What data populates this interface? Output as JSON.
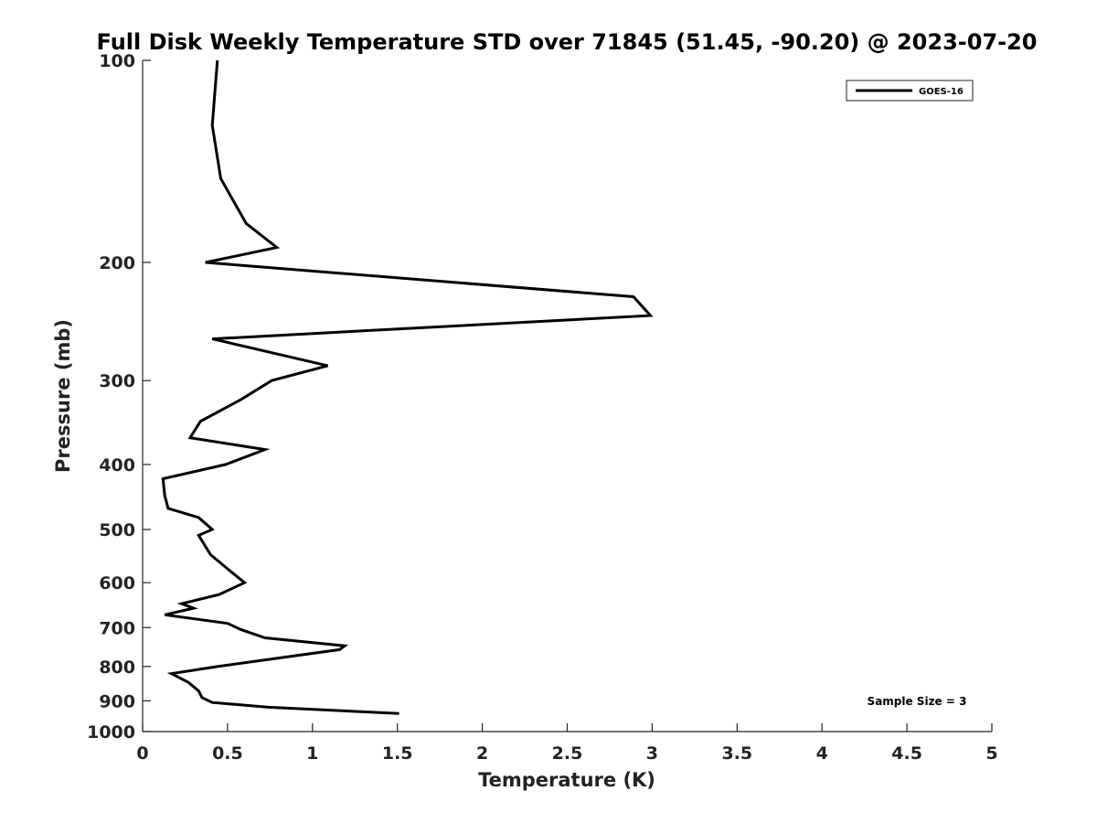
{
  "chart_data": {
    "type": "line",
    "title": "Full Disk Weekly Temperature STD over 71845 (51.45, -90.20) @ 2023-07-20",
    "xlabel": "Temperature (K)",
    "ylabel": "Pressure (mb)",
    "xlim": [
      0,
      5
    ],
    "ylim": [
      1000,
      100
    ],
    "y_scale": "log",
    "y_reversed": true,
    "grid": false,
    "legend_placement": "top-right",
    "line_color": "#000000",
    "x_ticks": [
      "0",
      "0.5",
      "1",
      "1.5",
      "2",
      "2.5",
      "3",
      "3.5",
      "4",
      "4.5",
      "5"
    ],
    "y_ticks": [
      "100",
      "200",
      "300",
      "400",
      "500",
      "600",
      "700",
      "800",
      "900",
      "1000"
    ],
    "annotation": "Sample Size = 3",
    "series": [
      {
        "name": "GOES-16",
        "points": [
          [
            0.44,
            100
          ],
          [
            0.41,
            125
          ],
          [
            0.46,
            150
          ],
          [
            0.61,
            175
          ],
          [
            0.79,
            190
          ],
          [
            0.37,
            200
          ],
          [
            2.89,
            225
          ],
          [
            2.99,
            240
          ],
          [
            0.41,
            260
          ],
          [
            1.09,
            285
          ],
          [
            0.76,
            300
          ],
          [
            0.58,
            320
          ],
          [
            0.34,
            345
          ],
          [
            0.28,
            365
          ],
          [
            0.72,
            380
          ],
          [
            0.49,
            400
          ],
          [
            0.12,
            420
          ],
          [
            0.13,
            445
          ],
          [
            0.15,
            465
          ],
          [
            0.33,
            480
          ],
          [
            0.41,
            500
          ],
          [
            0.33,
            510
          ],
          [
            0.4,
            545
          ],
          [
            0.51,
            575
          ],
          [
            0.6,
            600
          ],
          [
            0.45,
            625
          ],
          [
            0.23,
            645
          ],
          [
            0.3,
            655
          ],
          [
            0.13,
            670
          ],
          [
            0.5,
            690
          ],
          [
            0.58,
            705
          ],
          [
            0.72,
            725
          ],
          [
            1.19,
            745
          ],
          [
            1.16,
            755
          ],
          [
            0.44,
            800
          ],
          [
            0.17,
            820
          ],
          [
            0.27,
            845
          ],
          [
            0.33,
            870
          ],
          [
            0.35,
            890
          ],
          [
            0.41,
            905
          ],
          [
            0.74,
            920
          ],
          [
            1.51,
            940
          ]
        ]
      }
    ]
  }
}
